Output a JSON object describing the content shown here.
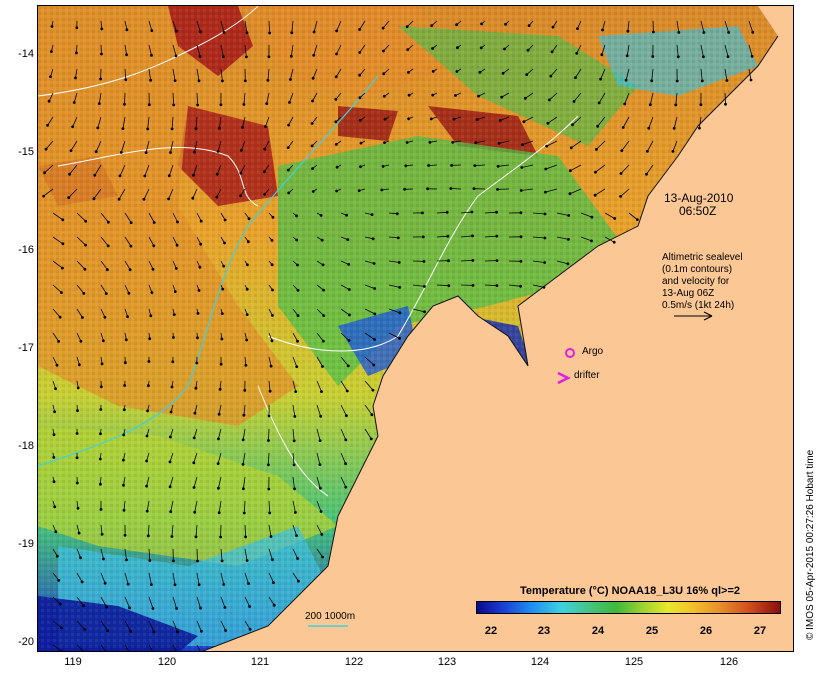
{
  "map": {
    "date": "13-Aug-2010",
    "time": "06:50Z",
    "lat_ticks": [
      "-14",
      "-15",
      "-16",
      "-17",
      "-18",
      "-19",
      "-20"
    ],
    "lon_ticks": [
      "119",
      "120",
      "121",
      "122",
      "123",
      "124",
      "125",
      "126"
    ],
    "legend_text": {
      "line1": "Altimetric sealevel",
      "line2": "(0.1m contours)",
      "line3": "and velocity for",
      "line4": "13-Aug 06Z",
      "line5": "0.5m/s (1kt 24h)"
    },
    "argo_label": "Argo",
    "drifter_label": "drifter",
    "depth_label": "200  1000m",
    "colorbar": {
      "title": "Temperature (°C) NOAA18_L3U 16% ql>=2",
      "ticks": [
        "22",
        "23",
        "24",
        "25",
        "26",
        "27"
      ]
    },
    "credit": "© IMOS 05-Apr-2015 00:27:26 Hobart time",
    "colors": {
      "land": "#fbc794",
      "warm": "#e8902b",
      "hot": "#8b0e0e",
      "mid": "#47c27a",
      "cold": "#0a0a8c",
      "argo": "#e020e0",
      "isobath": "#3fd1e0"
    }
  }
}
